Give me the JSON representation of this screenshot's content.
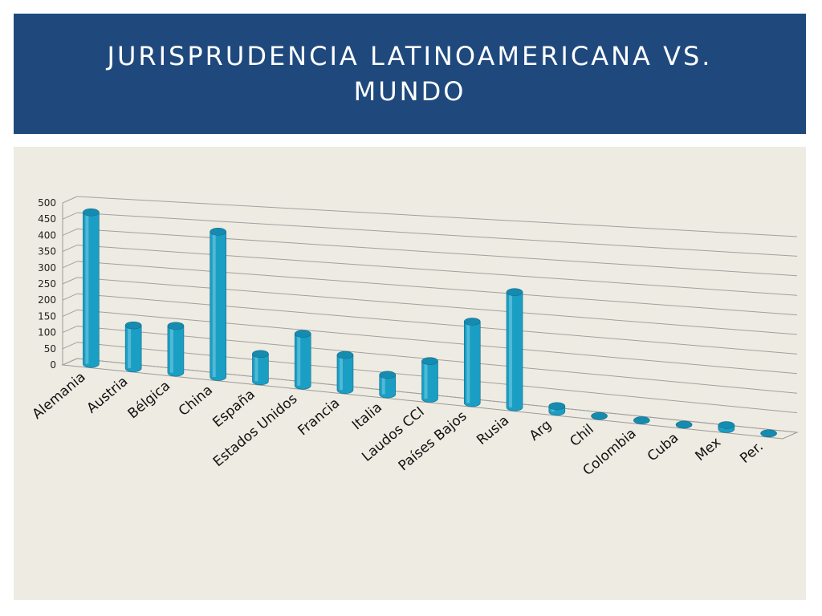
{
  "slide": {
    "title": "JURISPRUDENCIA LATINOAMERICANA VS. MUNDO"
  },
  "colors": {
    "title_band": "#1f497d",
    "panel": "#eeebe2",
    "bar_side": "#1a9ec4",
    "bar_top": "#168bb0"
  },
  "chart_data": {
    "type": "bar",
    "style": "3d-cylinder",
    "title": "",
    "xlabel": "",
    "ylabel": "",
    "ylim": [
      0,
      500
    ],
    "yticks": [
      "0",
      "50",
      "100",
      "150",
      "200",
      "250",
      "300",
      "350",
      "400",
      "450",
      "500"
    ],
    "grid": true,
    "legend": "none",
    "categories": [
      "Alemania",
      "Austria",
      "Bélgica",
      "China",
      "España",
      "Estados Unidos",
      "Francia",
      "Italia",
      "Laudos CCI",
      "Países Bajos",
      "Rusia",
      "Arg",
      "Chil",
      "Colombia",
      "Cuba",
      "Mex",
      "Per."
    ],
    "values": [
      465,
      130,
      140,
      430,
      80,
      150,
      100,
      55,
      105,
      225,
      315,
      15,
      0,
      0,
      0,
      10,
      0
    ]
  }
}
